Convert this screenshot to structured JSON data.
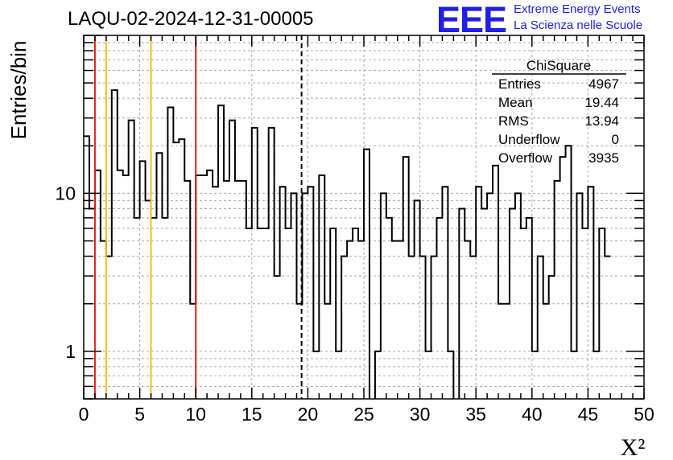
{
  "header": {
    "title": "LAQU-02-2024-12-31-00005",
    "logo_text": "EEE",
    "logo_line1": "Extreme Energy Events",
    "logo_line2": "La Scienza nelle Scuole"
  },
  "stats_box": {
    "title": "ChiSquare",
    "rows": [
      {
        "label": "Entries",
        "value": "4967"
      },
      {
        "label": "Mean",
        "value": "19.44"
      },
      {
        "label": "RMS",
        "value": "13.94"
      },
      {
        "label": "Underflow",
        "value": "0"
      },
      {
        "label": "Overflow",
        "value": "3935"
      }
    ]
  },
  "colors": {
    "red_line": "#e02020",
    "orange_line": "#f0c020",
    "grid": "#aaaaaa",
    "logo": "#1f1fe6"
  },
  "chart_data": {
    "type": "histogram",
    "xlabel": "X²",
    "ylabel": "Entries/bin",
    "xlim": [
      0,
      50
    ],
    "ylim": [
      0.5,
      100
    ],
    "yscale": "log",
    "grid": true,
    "xticks": [
      0,
      5,
      10,
      15,
      20,
      25,
      30,
      35,
      40,
      45,
      50
    ],
    "yticks": [
      1,
      10
    ],
    "bin_width": 0.5,
    "values": [
      23,
      8,
      14,
      5,
      4,
      45,
      14,
      13,
      29,
      7,
      16,
      9,
      7,
      18,
      7,
      35,
      21,
      22,
      12,
      2,
      13,
      13,
      14,
      11,
      36,
      12,
      29,
      12,
      12,
      6,
      26,
      6,
      6,
      26,
      3,
      11,
      6,
      10,
      2,
      10,
      11,
      1,
      13,
      2,
      6,
      1,
      4,
      5,
      6,
      5,
      19,
      0,
      1,
      10,
      7,
      5,
      5,
      17,
      4,
      9,
      4,
      1,
      4,
      7,
      11,
      1,
      0,
      8,
      5,
      4,
      11,
      8,
      10,
      15,
      2,
      2,
      8,
      10,
      6,
      7,
      1,
      4,
      2,
      3,
      12,
      17,
      20,
      1,
      10,
      6,
      11,
      1,
      6,
      4
    ],
    "vlines": [
      {
        "x": 1,
        "color": "red",
        "style": "solid"
      },
      {
        "x": 2,
        "color": "orange",
        "style": "solid"
      },
      {
        "x": 6,
        "color": "orange",
        "style": "solid"
      },
      {
        "x": 10,
        "color": "red",
        "style": "solid"
      },
      {
        "x": 19.44,
        "color": "black",
        "style": "dashed"
      }
    ]
  }
}
